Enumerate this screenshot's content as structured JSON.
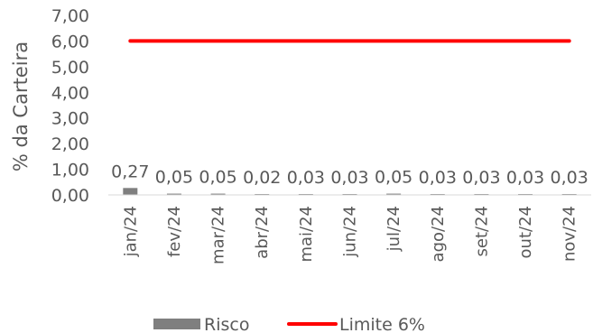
{
  "chart_data": {
    "type": "bar",
    "categories": [
      "jan/24",
      "fev/24",
      "mar/24",
      "abr/24",
      "mai/24",
      "jun/24",
      "jul/24",
      "ago/24",
      "set/24",
      "out/24",
      "nov/24"
    ],
    "series": [
      {
        "name": "Risco",
        "kind": "bar",
        "color": "#7f7f7f",
        "values": [
          0.27,
          0.05,
          0.05,
          0.02,
          0.03,
          0.03,
          0.05,
          0.03,
          0.03,
          0.03,
          0.03
        ],
        "labels": [
          "0,27",
          "0,05",
          "0,05",
          "0,02",
          "0,03",
          "0,03",
          "0,05",
          "0,03",
          "0,03",
          "0,03",
          "0,03"
        ]
      },
      {
        "name": "Limite 6%",
        "kind": "line",
        "color": "#ff0000",
        "values": [
          6,
          6,
          6,
          6,
          6,
          6,
          6,
          6,
          6,
          6,
          6
        ]
      }
    ],
    "ylabel": "% da Carteira",
    "ylim": [
      0,
      7
    ],
    "yticks": [
      {
        "v": 0,
        "label": "0,00"
      },
      {
        "v": 1,
        "label": "1,00"
      },
      {
        "v": 2,
        "label": "2,00"
      },
      {
        "v": 3,
        "label": "3,00"
      },
      {
        "v": 4,
        "label": "4,00"
      },
      {
        "v": 5,
        "label": "5,00"
      },
      {
        "v": 6,
        "label": "6,00"
      },
      {
        "v": 7,
        "label": "7,00"
      }
    ],
    "grid": false,
    "legend": "bottom"
  }
}
